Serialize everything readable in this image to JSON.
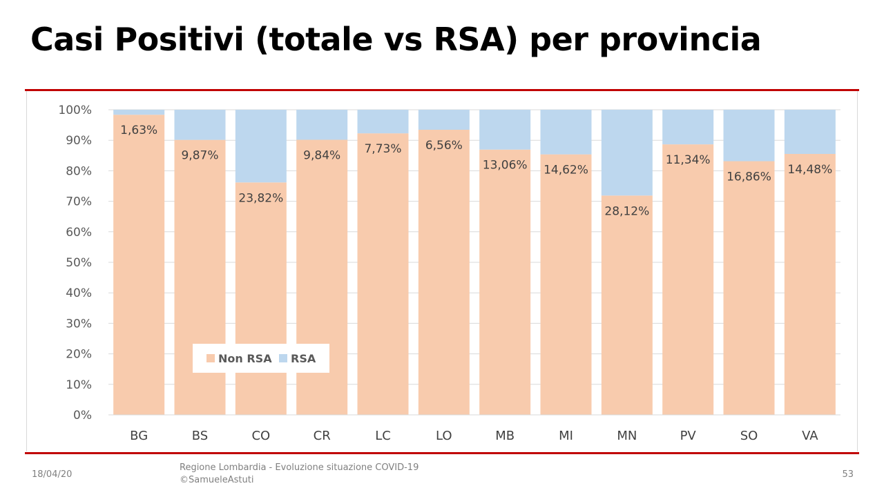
{
  "slide": {
    "title": "Casi Positivi (totale vs RSA) per provincia",
    "date": "18/04/20",
    "footer_line1": "Regione Lombardia - Evoluzione situazione COVID-19",
    "footer_line2": "©SamueleAstuti",
    "page_number": "53"
  },
  "chart_data": {
    "type": "bar",
    "stacked": "percent",
    "categories": [
      "BG",
      "BS",
      "CO",
      "CR",
      "LC",
      "LO",
      "MB",
      "MI",
      "MN",
      "PV",
      "SO",
      "VA"
    ],
    "series": [
      {
        "name": "Non RSA",
        "color": "#f8cbad",
        "values": [
          98.37,
          90.13,
          76.18,
          90.16,
          92.27,
          93.44,
          86.94,
          85.38,
          71.88,
          88.66,
          83.14,
          85.52
        ]
      },
      {
        "name": "RSA",
        "color": "#bdd7ee",
        "values": [
          1.63,
          9.87,
          23.82,
          9.84,
          7.73,
          6.56,
          13.06,
          14.62,
          28.12,
          11.34,
          16.86,
          14.48
        ]
      }
    ],
    "data_labels": [
      "1,63%",
      "9,87%",
      "23,82%",
      "9,84%",
      "7,73%",
      "6,56%",
      "13,06%",
      "14,62%",
      "28,12%",
      "11,34%",
      "16,86%",
      "14,48%"
    ],
    "y_ticks": [
      "0%",
      "10%",
      "20%",
      "30%",
      "40%",
      "50%",
      "60%",
      "70%",
      "80%",
      "90%",
      "100%"
    ],
    "ylim": [
      0,
      100
    ],
    "grid": true,
    "legend_position": "inside-bottom-left"
  }
}
